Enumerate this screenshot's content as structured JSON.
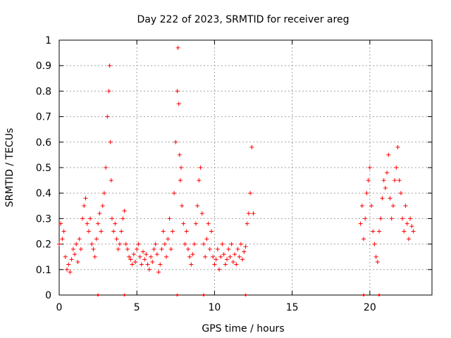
{
  "chart_data": {
    "type": "scatter",
    "title": "Day 222 of 2023, SRMTID for receiver areg",
    "xlabel": "GPS time / hours",
    "ylabel": "SRMTID / TECUs",
    "xlim": [
      0,
      24
    ],
    "ylim": [
      0,
      1
    ],
    "xticks": [
      0,
      5,
      10,
      15,
      20
    ],
    "xtick_labels": [
      "0",
      "5",
      "10",
      "15",
      "20"
    ],
    "yticks": [
      0,
      0.1,
      0.2,
      0.3,
      0.4,
      0.5,
      0.6,
      0.7,
      0.8,
      0.9,
      1
    ],
    "ytick_labels": [
      "0",
      "0.1",
      "0.2",
      "0.3",
      "0.4",
      "0.5",
      "0.6",
      "0.7",
      "0.8",
      "0.9",
      "1"
    ],
    "grid": true,
    "marker": "+",
    "color": "#ff0000",
    "series": [
      {
        "name": "SRMTID",
        "x": [
          0.0,
          0.1,
          0.2,
          0.3,
          0.4,
          0.5,
          0.6,
          0.7,
          0.8,
          0.9,
          1.0,
          1.1,
          1.2,
          1.3,
          1.4,
          1.5,
          1.6,
          1.7,
          1.8,
          1.9,
          2.0,
          2.1,
          2.2,
          2.3,
          2.4,
          2.5,
          2.6,
          2.7,
          2.8,
          2.9,
          3.0,
          3.1,
          3.2,
          3.25,
          3.3,
          3.35,
          3.4,
          3.5,
          3.6,
          3.7,
          3.8,
          3.9,
          4.0,
          4.1,
          4.2,
          4.3,
          4.4,
          4.5,
          4.6,
          4.7,
          4.8,
          4.9,
          5.0,
          5.1,
          5.2,
          5.3,
          5.4,
          5.5,
          5.6,
          5.7,
          5.8,
          5.9,
          6.0,
          6.1,
          6.2,
          6.3,
          6.4,
          6.5,
          6.6,
          6.7,
          6.8,
          6.9,
          7.0,
          7.1,
          7.2,
          7.3,
          7.4,
          7.5,
          7.6,
          7.65,
          7.7,
          7.75,
          7.8,
          7.85,
          7.9,
          8.0,
          8.1,
          8.2,
          8.3,
          8.4,
          8.5,
          8.6,
          8.7,
          8.8,
          8.9,
          9.0,
          9.1,
          9.2,
          9.3,
          9.4,
          9.5,
          9.6,
          9.7,
          9.8,
          9.9,
          10.0,
          10.1,
          10.2,
          10.3,
          10.4,
          10.5,
          10.6,
          10.7,
          10.8,
          10.9,
          11.0,
          11.1,
          11.2,
          11.3,
          11.4,
          11.5,
          11.6,
          11.7,
          11.8,
          11.9,
          12.0,
          12.1,
          12.2,
          12.3,
          12.4,
          12.5,
          19.4,
          19.5,
          19.6,
          19.7,
          19.8,
          19.9,
          20.0,
          20.1,
          20.2,
          20.3,
          20.4,
          20.5,
          20.6,
          20.7,
          20.8,
          20.9,
          21.0,
          21.1,
          21.2,
          21.3,
          21.4,
          21.5,
          21.6,
          21.7,
          21.8,
          21.9,
          22.0,
          22.1,
          22.2,
          22.3,
          22.4,
          22.5,
          22.6,
          22.7,
          22.8
        ],
        "y": [
          0.2,
          0.28,
          0.22,
          0.25,
          0.15,
          0.1,
          0.12,
          0.09,
          0.14,
          0.18,
          0.16,
          0.2,
          0.13,
          0.22,
          0.18,
          0.3,
          0.35,
          0.38,
          0.28,
          0.25,
          0.3,
          0.2,
          0.18,
          0.15,
          0.22,
          0.28,
          0.32,
          0.25,
          0.35,
          0.4,
          0.5,
          0.7,
          0.8,
          0.9,
          0.6,
          0.45,
          0.3,
          0.25,
          0.28,
          0.22,
          0.18,
          0.2,
          0.25,
          0.3,
          0.33,
          0.2,
          0.18,
          0.15,
          0.14,
          0.12,
          0.16,
          0.13,
          0.18,
          0.2,
          0.15,
          0.12,
          0.17,
          0.14,
          0.16,
          0.12,
          0.1,
          0.15,
          0.13,
          0.18,
          0.2,
          0.16,
          0.09,
          0.12,
          0.18,
          0.25,
          0.2,
          0.15,
          0.22,
          0.3,
          0.18,
          0.25,
          0.4,
          0.6,
          0.8,
          0.97,
          0.75,
          0.55,
          0.45,
          0.5,
          0.35,
          0.28,
          0.2,
          0.25,
          0.18,
          0.15,
          0.12,
          0.16,
          0.2,
          0.28,
          0.35,
          0.45,
          0.5,
          0.32,
          0.2,
          0.15,
          0.22,
          0.28,
          0.18,
          0.25,
          0.15,
          0.12,
          0.14,
          0.18,
          0.1,
          0.15,
          0.2,
          0.16,
          0.12,
          0.14,
          0.18,
          0.15,
          0.2,
          0.13,
          0.16,
          0.12,
          0.18,
          0.15,
          0.2,
          0.14,
          0.17,
          0.19,
          0.28,
          0.32,
          0.4,
          0.58,
          0.32,
          0.28,
          0.35,
          0.22,
          0.3,
          0.4,
          0.45,
          0.5,
          0.35,
          0.25,
          0.2,
          0.15,
          0.13,
          0.25,
          0.3,
          0.38,
          0.45,
          0.42,
          0.48,
          0.55,
          0.38,
          0.3,
          0.35,
          0.45,
          0.5,
          0.58,
          0.45,
          0.4,
          0.3,
          0.25,
          0.35,
          0.28,
          0.22,
          0.3,
          0.27,
          0.25
        ]
      }
    ],
    "zero_markers": [
      2.5,
      4.2,
      7.6,
      9.3,
      12.0,
      19.6,
      20.6
    ]
  }
}
